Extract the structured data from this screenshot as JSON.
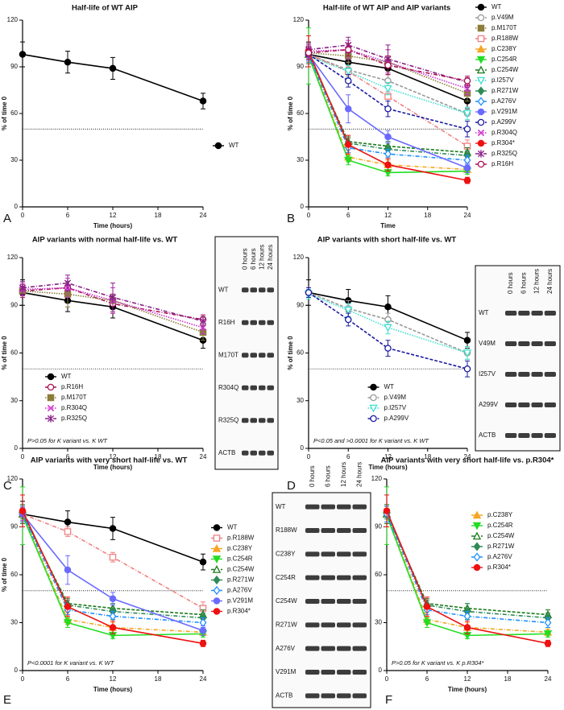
{
  "chart_data": [
    {
      "type": "line",
      "title": "Half-life of WT AIP",
      "letter": "A",
      "x_label": "Time (hours)",
      "y_label": "% of time 0",
      "x": [
        0,
        6,
        12,
        24
      ],
      "xlim": [
        0,
        24
      ],
      "xticks": [
        0,
        6,
        12,
        18,
        24
      ],
      "ylim": [
        0,
        120
      ],
      "yticks": [
        0,
        30,
        60,
        90,
        120
      ],
      "reference_line": 50,
      "legend": "right",
      "series": [
        {
          "name": "WT",
          "color": "#000000",
          "marker": "circle",
          "line": "solid",
          "values": [
            98,
            93,
            89,
            68
          ],
          "errors": [
            8,
            7,
            7,
            5
          ]
        }
      ]
    },
    {
      "type": "line",
      "title": "Half-life of WT AIP and AIP variants",
      "letter": "B",
      "x_label": "Time",
      "y_label": "% of time 0",
      "x": [
        0,
        6,
        12,
        24
      ],
      "xlim": [
        0,
        24
      ],
      "xticks": [
        0,
        6,
        12,
        18,
        24
      ],
      "ylim": [
        0,
        120
      ],
      "yticks": [
        0,
        30,
        60,
        90,
        120
      ],
      "reference_line": 50,
      "legend": "right-top",
      "series": [
        {
          "name": "WT",
          "color": "#000000",
          "marker": "circle",
          "line": "solid",
          "values": [
            98,
            93,
            89,
            68
          ],
          "errors": [
            8,
            7,
            7,
            5
          ]
        },
        {
          "name": "p.V49M",
          "color": "#999999",
          "marker": "open-circle",
          "line": "dashed",
          "values": [
            98,
            88,
            81,
            60
          ],
          "errors": [
            3,
            5,
            4,
            4
          ]
        },
        {
          "name": "p.M170T",
          "color": "#8b7d3a",
          "marker": "square",
          "line": "dotted",
          "values": [
            99,
            97,
            93,
            73
          ],
          "errors": [
            3,
            8,
            8,
            5
          ]
        },
        {
          "name": "p.R188W",
          "color": "#f08080",
          "marker": "open-square",
          "line": "dashdot",
          "values": [
            98,
            87,
            71,
            39
          ],
          "errors": [
            4,
            3,
            3,
            4
          ]
        },
        {
          "name": "p.C238Y",
          "color": "#f5a623",
          "marker": "triangle",
          "line": "dashdot",
          "values": [
            98,
            32,
            27,
            24
          ],
          "errors": [
            5,
            3,
            3,
            2
          ]
        },
        {
          "name": "p.C254R",
          "color": "#22dd22",
          "marker": "down-triangle",
          "line": "solid",
          "values": [
            97,
            30,
            22,
            23
          ],
          "errors": [
            18,
            3,
            2,
            2
          ]
        },
        {
          "name": "p.C254W",
          "color": "#1a7a1a",
          "marker": "open-triangle",
          "line": "dashed",
          "values": [
            98,
            42,
            39,
            35
          ],
          "errors": [
            6,
            3,
            3,
            3
          ]
        },
        {
          "name": "p.I257V",
          "color": "#40e0d0",
          "marker": "open-down-triangle",
          "line": "dotted",
          "values": [
            97,
            87,
            76,
            60
          ],
          "errors": [
            3,
            4,
            4,
            4
          ]
        },
        {
          "name": "p.R271W",
          "color": "#2e8b57",
          "marker": "diamond",
          "line": "dashdot",
          "values": [
            99,
            41,
            37,
            33
          ],
          "errors": [
            4,
            3,
            5,
            3
          ]
        },
        {
          "name": "p.A276V",
          "color": "#1e90ff",
          "marker": "open-diamond",
          "line": "dashdot",
          "values": [
            98,
            38,
            34,
            30
          ],
          "errors": [
            5,
            3,
            3,
            3
          ]
        },
        {
          "name": "p.V291M",
          "color": "#6a6aff",
          "marker": "circle",
          "line": "solid",
          "values": [
            98,
            63,
            45,
            25
          ],
          "errors": [
            4,
            9,
            4,
            3
          ]
        },
        {
          "name": "p.A299V",
          "color": "#1a1aa0",
          "marker": "open-circle",
          "line": "dashed",
          "values": [
            98,
            81,
            63,
            50
          ],
          "errors": [
            3,
            4,
            5,
            5
          ]
        },
        {
          "name": "p.R304Q",
          "color": "#cc33cc",
          "marker": "cross",
          "line": "dotted",
          "values": [
            100,
            101,
            93,
            76
          ],
          "errors": [
            4,
            6,
            8,
            4
          ]
        },
        {
          "name": "p.R304*",
          "color": "#ee1111",
          "marker": "circle",
          "line": "solid",
          "values": [
            100,
            40,
            27,
            17
          ],
          "errors": [
            10,
            6,
            4,
            2
          ]
        },
        {
          "name": "p.R325Q",
          "color": "#882288",
          "marker": "asterisk",
          "line": "dashdot",
          "values": [
            101,
            104,
            95,
            80
          ],
          "errors": [
            4,
            5,
            9,
            3
          ]
        },
        {
          "name": "p.R16H",
          "color": "#aa1155",
          "marker": "open-circle",
          "line": "dashdot",
          "values": [
            99,
            101,
            91,
            81
          ],
          "errors": [
            4,
            4,
            6,
            3
          ]
        }
      ]
    },
    {
      "type": "line",
      "title": "AIP variants with normal half-life vs. WT",
      "letter": "C",
      "x_label": "Time (hours)",
      "y_label": "% of time 0",
      "annotation": "P>0.05 for K variant vs. K WT",
      "x": [
        0,
        6,
        12,
        24
      ],
      "xlim": [
        0,
        24
      ],
      "xticks": [
        0,
        6,
        12,
        18,
        24
      ],
      "ylim": [
        0,
        120
      ],
      "yticks": [
        0,
        30,
        60,
        90,
        120
      ],
      "reference_line": 50,
      "legend": "lower-left",
      "series": [
        {
          "name": "WT",
          "color": "#000000",
          "marker": "circle",
          "line": "solid",
          "values": [
            98,
            93,
            89,
            68
          ],
          "errors": [
            8,
            7,
            7,
            5
          ]
        },
        {
          "name": "p.R16H",
          "color": "#aa1155",
          "marker": "open-circle",
          "line": "dashdot",
          "values": [
            99,
            101,
            91,
            81
          ],
          "errors": [
            4,
            4,
            6,
            3
          ]
        },
        {
          "name": "p.M170T",
          "color": "#8b7d3a",
          "marker": "square",
          "line": "dotted",
          "values": [
            99,
            97,
            93,
            73
          ],
          "errors": [
            3,
            8,
            8,
            5
          ]
        },
        {
          "name": "p.R304Q",
          "color": "#cc33cc",
          "marker": "cross",
          "line": "dotted",
          "values": [
            100,
            101,
            93,
            76
          ],
          "errors": [
            4,
            6,
            8,
            4
          ]
        },
        {
          "name": "p.R325Q",
          "color": "#882288",
          "marker": "asterisk",
          "line": "dashdot",
          "values": [
            101,
            104,
            95,
            80
          ],
          "errors": [
            4,
            5,
            9,
            3
          ]
        }
      ]
    },
    {
      "type": "line",
      "title": "AIP variants with short half-life vs. WT",
      "letter": "D",
      "x_label": "Time (hours)",
      "y_label": "% of time 0",
      "annotation": "P<0.05 and >0.0001 for K variant vs. K WT",
      "x": [
        0,
        6,
        12,
        24
      ],
      "xlim": [
        0,
        24
      ],
      "xticks": [
        0,
        6,
        12,
        18,
        24
      ],
      "ylim": [
        0,
        120
      ],
      "yticks": [
        0,
        30,
        60,
        90,
        120
      ],
      "reference_line": 50,
      "legend": "lower-center",
      "series": [
        {
          "name": "WT",
          "color": "#000000",
          "marker": "circle",
          "line": "solid",
          "values": [
            98,
            93,
            89,
            68
          ],
          "errors": [
            8,
            7,
            7,
            5
          ]
        },
        {
          "name": "p.V49M",
          "color": "#999999",
          "marker": "open-circle",
          "line": "dashed",
          "values": [
            98,
            88,
            81,
            60
          ],
          "errors": [
            3,
            5,
            4,
            4
          ]
        },
        {
          "name": "p.I257V",
          "color": "#40e0d0",
          "marker": "open-down-triangle",
          "line": "dotted",
          "values": [
            97,
            87,
            76,
            60
          ],
          "errors": [
            3,
            4,
            4,
            4
          ]
        },
        {
          "name": "p.A299V",
          "color": "#1a1aa0",
          "marker": "open-circle",
          "line": "dashed",
          "values": [
            98,
            81,
            63,
            50
          ],
          "errors": [
            3,
            4,
            5,
            5
          ]
        }
      ]
    },
    {
      "type": "line",
      "title": "AIP variants with very short half-life vs. WT",
      "letter": "E",
      "x_label": "Time (hours)",
      "y_label": "% of time 0",
      "annotation": "P<0.0001 for K variant vs. K WT",
      "x": [
        0,
        6,
        12,
        24
      ],
      "xlim": [
        0,
        24
      ],
      "xticks": [
        0,
        6,
        12,
        18,
        24
      ],
      "ylim": [
        0,
        120
      ],
      "yticks": [
        0,
        30,
        60,
        90,
        120
      ],
      "reference_line": 50,
      "legend": "right-middle",
      "series": [
        {
          "name": "WT",
          "color": "#000000",
          "marker": "circle",
          "line": "solid",
          "values": [
            98,
            93,
            89,
            68
          ],
          "errors": [
            8,
            7,
            7,
            5
          ]
        },
        {
          "name": "p.R188W",
          "color": "#f08080",
          "marker": "open-square",
          "line": "dashdot",
          "values": [
            98,
            87,
            71,
            39
          ],
          "errors": [
            4,
            3,
            3,
            4
          ]
        },
        {
          "name": "p.C238Y",
          "color": "#f5a623",
          "marker": "triangle",
          "line": "dashdot",
          "values": [
            98,
            32,
            27,
            24
          ],
          "errors": [
            5,
            3,
            3,
            2
          ]
        },
        {
          "name": "p.C254R",
          "color": "#22dd22",
          "marker": "down-triangle",
          "line": "solid",
          "values": [
            97,
            30,
            22,
            23
          ],
          "errors": [
            18,
            3,
            2,
            2
          ]
        },
        {
          "name": "p.C254W",
          "color": "#1a7a1a",
          "marker": "open-triangle",
          "line": "dashed",
          "values": [
            98,
            42,
            39,
            35
          ],
          "errors": [
            6,
            3,
            3,
            3
          ]
        },
        {
          "name": "p.R271W",
          "color": "#2e8b57",
          "marker": "diamond",
          "line": "dashdot",
          "values": [
            99,
            41,
            37,
            33
          ],
          "errors": [
            4,
            3,
            5,
            3
          ]
        },
        {
          "name": "p.A276V",
          "color": "#1e90ff",
          "marker": "open-diamond",
          "line": "dashdot",
          "values": [
            98,
            38,
            34,
            30
          ],
          "errors": [
            5,
            3,
            3,
            3
          ]
        },
        {
          "name": "p.V291M",
          "color": "#6a6aff",
          "marker": "circle",
          "line": "solid",
          "values": [
            98,
            63,
            45,
            25
          ],
          "errors": [
            4,
            9,
            4,
            3
          ]
        },
        {
          "name": "p.R304*",
          "color": "#ee1111",
          "marker": "circle",
          "line": "solid",
          "values": [
            100,
            40,
            27,
            17
          ],
          "errors": [
            10,
            6,
            4,
            2
          ]
        }
      ]
    },
    {
      "type": "line",
      "title": "AIP variants with very short half-life vs. p.R304*",
      "letter": "F",
      "x_label": "Time (hours)",
      "y_label": "% of time 0",
      "annotation": "P>0.05 for K variant vs. K p.R304*",
      "x": [
        0,
        6,
        12,
        24
      ],
      "xlim": [
        0,
        24
      ],
      "xticks": [
        0,
        6,
        12,
        18,
        24
      ],
      "ylim": [
        0,
        120
      ],
      "yticks": [
        0,
        30,
        60,
        90,
        120
      ],
      "reference_line": 50,
      "legend": "upper-right",
      "series": [
        {
          "name": "p.C238Y",
          "color": "#f5a623",
          "marker": "triangle",
          "line": "dashdot",
          "values": [
            98,
            32,
            27,
            24
          ],
          "errors": [
            5,
            3,
            3,
            2
          ]
        },
        {
          "name": "p.C254R",
          "color": "#22dd22",
          "marker": "down-triangle",
          "line": "solid",
          "values": [
            97,
            30,
            22,
            23
          ],
          "errors": [
            18,
            3,
            2,
            2
          ]
        },
        {
          "name": "p.C254W",
          "color": "#1a7a1a",
          "marker": "open-triangle",
          "line": "dashed",
          "values": [
            98,
            42,
            39,
            35
          ],
          "errors": [
            6,
            3,
            3,
            3
          ]
        },
        {
          "name": "p.R271W",
          "color": "#2e8b57",
          "marker": "diamond",
          "line": "dashdot",
          "values": [
            99,
            41,
            37,
            33
          ],
          "errors": [
            4,
            3,
            5,
            3
          ]
        },
        {
          "name": "p.A276V",
          "color": "#1e90ff",
          "marker": "open-diamond",
          "line": "dashdot",
          "values": [
            98,
            38,
            34,
            30
          ],
          "errors": [
            5,
            3,
            3,
            3
          ]
        },
        {
          "name": "p.R304*",
          "color": "#ee1111",
          "marker": "circle",
          "line": "solid",
          "values": [
            100,
            40,
            27,
            17
          ],
          "errors": [
            10,
            6,
            4,
            2
          ]
        }
      ]
    }
  ],
  "blots": [
    {
      "columns": [
        "0 hours",
        "6 hours",
        "12 hours",
        "24 hours"
      ],
      "rows": [
        "WT",
        "R16H",
        "M170T",
        "R304Q",
        "R325Q",
        "ACTB"
      ]
    },
    {
      "columns": [
        "0 hours",
        "6 hours",
        "12 hours",
        "24 hours"
      ],
      "rows": [
        "WT",
        "V49M",
        "I257V",
        "A299V",
        "ACTB"
      ]
    },
    {
      "columns": [
        "0 hours",
        "6 hours",
        "12 hours",
        "24 hours"
      ],
      "rows": [
        "WT",
        "R188W",
        "C238Y",
        "C254R",
        "C254W",
        "R271W",
        "A276V",
        "V291M",
        "ACTB"
      ]
    }
  ]
}
